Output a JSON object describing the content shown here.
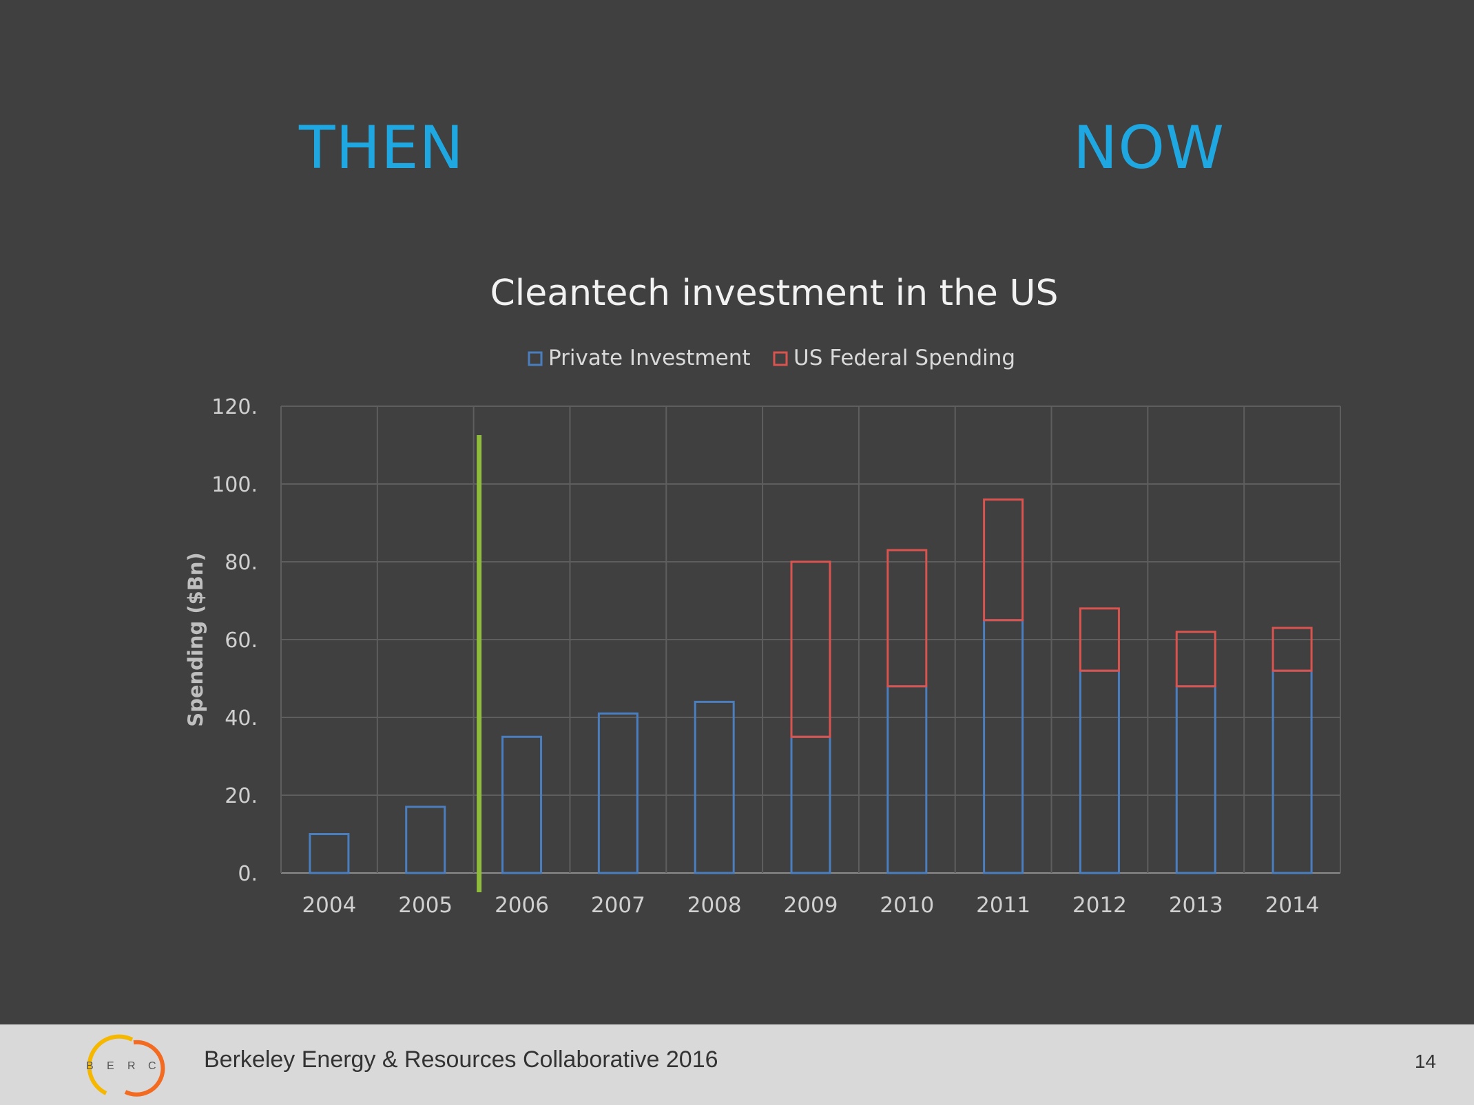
{
  "headings": {
    "left": "THEN",
    "right": "NOW"
  },
  "footer": {
    "logo_letters": [
      "B",
      "E",
      "R",
      "C"
    ],
    "text": "Berkeley Energy & Resources Collaborative 2016",
    "page_number": "14"
  },
  "colors": {
    "heading": "#1ea7e1",
    "private": "#4a7ebf",
    "federal": "#d9534f",
    "divider": "#8fbc3c",
    "background": "#404040"
  },
  "chart_data": {
    "type": "bar",
    "stacked": true,
    "title": "Cleantech investment in the US",
    "xlabel": "",
    "ylabel": "Spending ($Bn)",
    "ylim": [
      0,
      120
    ],
    "yticks": [
      "0.",
      "20.",
      "40.",
      "60.",
      "80.",
      "100.",
      "120."
    ],
    "grid": true,
    "legend_position": "top",
    "categories": [
      "2004",
      "2005",
      "2006",
      "2007",
      "2008",
      "2009",
      "2010",
      "2011",
      "2012",
      "2013",
      "2014"
    ],
    "series": [
      {
        "name": "Private Investment",
        "values": [
          10,
          17,
          35,
          41,
          44,
          35,
          48,
          65,
          52,
          48,
          52
        ]
      },
      {
        "name": "US Federal Spending",
        "values": [
          0,
          0,
          0,
          0,
          0,
          45,
          35,
          31,
          16,
          14,
          11
        ]
      }
    ],
    "annotations": [
      {
        "type": "vertical-divider",
        "between": [
          "2005",
          "2006"
        ]
      }
    ]
  }
}
